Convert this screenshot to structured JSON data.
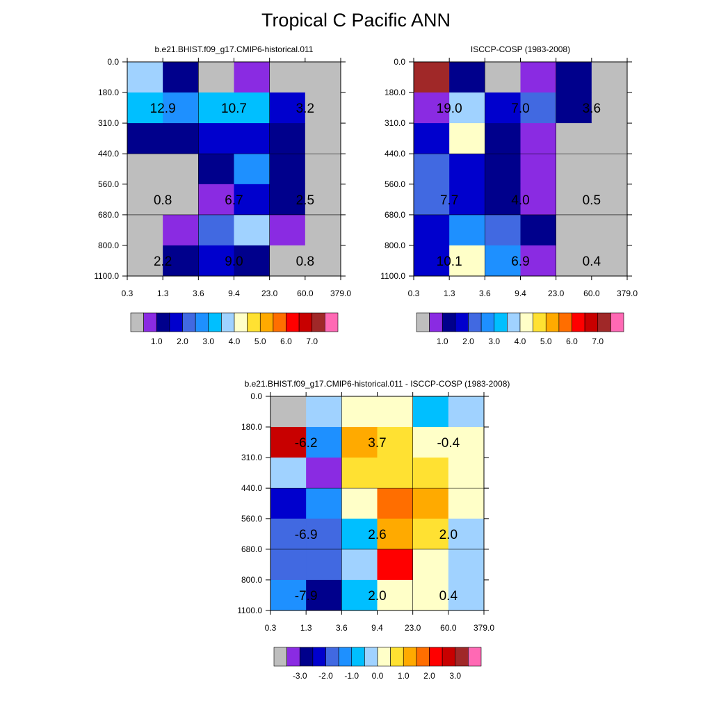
{
  "page_title": "Tropical C Pacific ANN",
  "chart_data": [
    {
      "type": "heatmap",
      "panel": "model",
      "title": "b.e21.BHIST.f09_g17.CMIP6-historical.011",
      "x_tick_labels": [
        "0.3",
        "1.3",
        "3.6",
        "9.4",
        "23.0",
        "60.0",
        "379.0"
      ],
      "y_tick_labels": [
        "0.0",
        "180.0",
        "310.0",
        "440.0",
        "560.0",
        "680.0",
        "800.0",
        "1100.0"
      ],
      "cells": [
        [
          "#a0d2ff",
          "#00008c",
          "#bebebe",
          "#8a2be2",
          "#bebebe",
          "#bebebe"
        ],
        [
          "#00bfff",
          "#1e90ff",
          "#00bfff",
          "#00bfff",
          "#0000cd",
          "#bebebe"
        ],
        [
          "#00008c",
          "#00008c",
          "#0000cd",
          "#0000cd",
          "#00008c",
          "#bebebe"
        ],
        [
          "#bebebe",
          "#bebebe",
          "#00008c",
          "#1e90ff",
          "#00008c",
          "#bebebe"
        ],
        [
          "#bebebe",
          "#bebebe",
          "#8a2be2",
          "#0000cd",
          "#00008c",
          "#bebebe"
        ],
        [
          "#bebebe",
          "#8a2be2",
          "#4169e1",
          "#a0d2ff",
          "#8a2be2",
          "#bebebe"
        ],
        [
          "#bebebe",
          "#00008c",
          "#0000cd",
          "#00008c",
          "#bebebe",
          "#bebebe"
        ]
      ],
      "annotations": [
        {
          "text": "12.9",
          "col": 1,
          "row": 1
        },
        {
          "text": "10.7",
          "col": 3,
          "row": 1
        },
        {
          "text": "3.2",
          "col": 5,
          "row": 1
        },
        {
          "text": "0.8",
          "col": 1,
          "row": 4
        },
        {
          "text": "6.7",
          "col": 3,
          "row": 4
        },
        {
          "text": "2.5",
          "col": 5,
          "row": 4
        },
        {
          "text": "2.2",
          "col": 1,
          "row": 6
        },
        {
          "text": "9.0",
          "col": 3,
          "row": 6
        },
        {
          "text": "0.8",
          "col": 5,
          "row": 6
        }
      ],
      "colorbar": {
        "colors": [
          "#bebebe",
          "#8a2be2",
          "#00008c",
          "#0000cd",
          "#4169e1",
          "#1e90ff",
          "#00bfff",
          "#a0d2ff",
          "#ffffc8",
          "#ffe132",
          "#ffaa00",
          "#ff6e00",
          "#ff0000",
          "#c80000",
          "#a02828",
          "#ff69b4"
        ],
        "labels": [
          "1.0",
          "2.0",
          "3.0",
          "4.0",
          "5.0",
          "6.0",
          "7.0"
        ]
      }
    },
    {
      "type": "heatmap",
      "panel": "obs",
      "title": "ISCCP-COSP (1983-2008)",
      "x_tick_labels": [
        "0.3",
        "1.3",
        "3.6",
        "9.4",
        "23.0",
        "60.0",
        "379.0"
      ],
      "y_tick_labels": [
        "0.0",
        "180.0",
        "310.0",
        "440.0",
        "560.0",
        "680.0",
        "800.0",
        "1100.0"
      ],
      "cells": [
        [
          "#a02828",
          "#00008c",
          "#bebebe",
          "#8a2be2",
          "#00008c",
          "#bebebe"
        ],
        [
          "#8a2be2",
          "#a0d2ff",
          "#0000cd",
          "#4169e1",
          "#00008c",
          "#bebebe"
        ],
        [
          "#0000cd",
          "#ffffc8",
          "#00008c",
          "#8a2be2",
          "#bebebe",
          "#bebebe"
        ],
        [
          "#4169e1",
          "#0000cd",
          "#00008c",
          "#8a2be2",
          "#bebebe",
          "#bebebe"
        ],
        [
          "#4169e1",
          "#0000cd",
          "#00008c",
          "#8a2be2",
          "#bebebe",
          "#bebebe"
        ],
        [
          "#0000cd",
          "#1e90ff",
          "#4169e1",
          "#00008c",
          "#bebebe",
          "#bebebe"
        ],
        [
          "#0000cd",
          "#ffffc8",
          "#1e90ff",
          "#8a2be2",
          "#bebebe",
          "#bebebe"
        ]
      ],
      "annotations": [
        {
          "text": "19.0",
          "col": 1,
          "row": 1
        },
        {
          "text": "7.0",
          "col": 3,
          "row": 1
        },
        {
          "text": "3.6",
          "col": 5,
          "row": 1
        },
        {
          "text": "7.7",
          "col": 1,
          "row": 4
        },
        {
          "text": "4.0",
          "col": 3,
          "row": 4
        },
        {
          "text": "0.5",
          "col": 5,
          "row": 4
        },
        {
          "text": "10.1",
          "col": 1,
          "row": 6
        },
        {
          "text": "6.9",
          "col": 3,
          "row": 6
        },
        {
          "text": "0.4",
          "col": 5,
          "row": 6
        }
      ],
      "colorbar": {
        "colors": [
          "#bebebe",
          "#8a2be2",
          "#00008c",
          "#0000cd",
          "#4169e1",
          "#1e90ff",
          "#00bfff",
          "#a0d2ff",
          "#ffffc8",
          "#ffe132",
          "#ffaa00",
          "#ff6e00",
          "#ff0000",
          "#c80000",
          "#a02828",
          "#ff69b4"
        ],
        "labels": [
          "1.0",
          "2.0",
          "3.0",
          "4.0",
          "5.0",
          "6.0",
          "7.0"
        ]
      }
    },
    {
      "type": "heatmap",
      "panel": "diff",
      "title": "b.e21.BHIST.f09_g17.CMIP6-historical.011 - ISCCP-COSP (1983-2008)",
      "x_tick_labels": [
        "0.3",
        "1.3",
        "3.6",
        "9.4",
        "23.0",
        "60.0",
        "379.0"
      ],
      "y_tick_labels": [
        "0.0",
        "180.0",
        "310.0",
        "440.0",
        "560.0",
        "680.0",
        "800.0",
        "1100.0"
      ],
      "cells": [
        [
          "#bebebe",
          "#a0d2ff",
          "#ffffc8",
          "#ffffc8",
          "#00bfff",
          "#a0d2ff"
        ],
        [
          "#c80000",
          "#1e90ff",
          "#ffaa00",
          "#ffe132",
          "#ffffc8",
          "#ffffc8"
        ],
        [
          "#a0d2ff",
          "#8a2be2",
          "#ffe132",
          "#ffe132",
          "#ffe132",
          "#ffffc8"
        ],
        [
          "#0000cd",
          "#1e90ff",
          "#ffffc8",
          "#ff6e00",
          "#ffaa00",
          "#ffffc8"
        ],
        [
          "#4169e1",
          "#4169e1",
          "#00bfff",
          "#ffaa00",
          "#ffe132",
          "#a0d2ff"
        ],
        [
          "#4169e1",
          "#4169e1",
          "#a0d2ff",
          "#ff0000",
          "#ffffc8",
          "#a0d2ff"
        ],
        [
          "#1e90ff",
          "#00008c",
          "#00bfff",
          "#ffffc8",
          "#ffffc8",
          "#a0d2ff"
        ]
      ],
      "annotations": [
        {
          "text": "-6.2",
          "col": 1,
          "row": 1
        },
        {
          "text": "3.7",
          "col": 3,
          "row": 1
        },
        {
          "text": "-0.4",
          "col": 5,
          "row": 1
        },
        {
          "text": "-6.9",
          "col": 1,
          "row": 4
        },
        {
          "text": "2.6",
          "col": 3,
          "row": 4
        },
        {
          "text": "2.0",
          "col": 5,
          "row": 4
        },
        {
          "text": "-7.9",
          "col": 1,
          "row": 6
        },
        {
          "text": "2.0",
          "col": 3,
          "row": 6
        },
        {
          "text": "0.4",
          "col": 5,
          "row": 6
        }
      ],
      "colorbar": {
        "colors": [
          "#bebebe",
          "#8a2be2",
          "#00008c",
          "#0000cd",
          "#4169e1",
          "#1e90ff",
          "#00bfff",
          "#a0d2ff",
          "#ffffc8",
          "#ffe132",
          "#ffaa00",
          "#ff6e00",
          "#ff0000",
          "#c80000",
          "#a02828",
          "#ff69b4"
        ],
        "labels": [
          "-3.0",
          "-2.0",
          "-1.0",
          "0.0",
          "1.0",
          "2.0",
          "3.0"
        ]
      }
    }
  ]
}
